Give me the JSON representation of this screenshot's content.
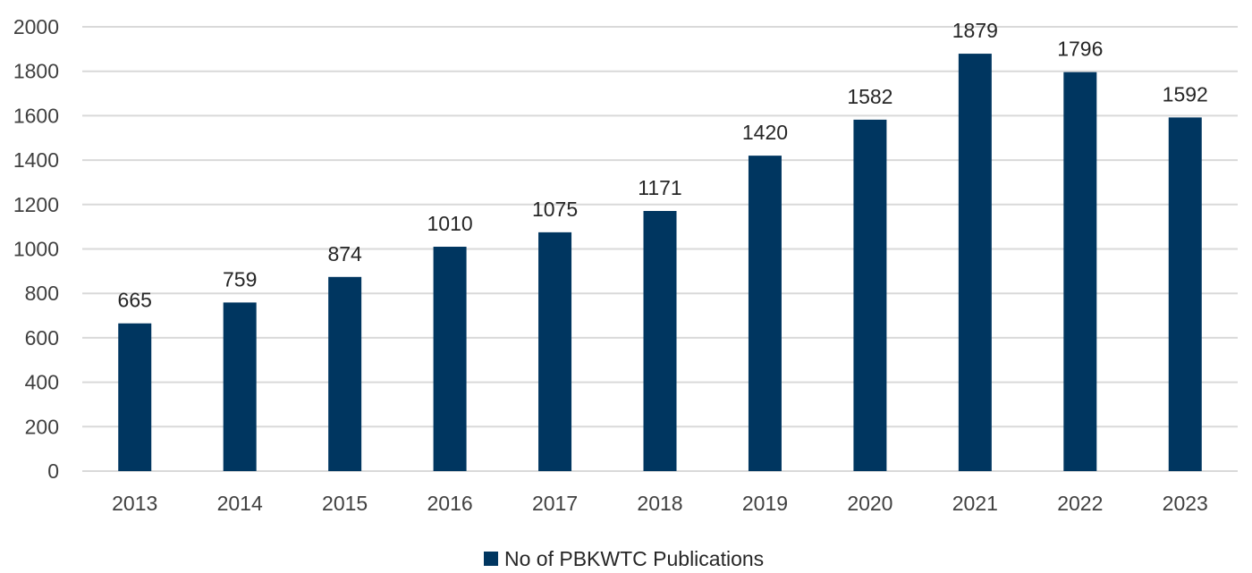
{
  "colors": {
    "bar": "#003660",
    "grid": "#d9d9d9",
    "text": "#404040"
  },
  "chart_data": {
    "type": "bar",
    "title": "",
    "xlabel": "",
    "ylabel": "",
    "categories": [
      "2013",
      "2014",
      "2015",
      "2016",
      "2017",
      "2018",
      "2019",
      "2020",
      "2021",
      "2022",
      "2023"
    ],
    "series": [
      {
        "name": "No of PBKWTC Publications",
        "values": [
          665,
          759,
          874,
          1010,
          1075,
          1171,
          1420,
          1582,
          1879,
          1796,
          1592
        ]
      }
    ],
    "ylim": [
      0,
      2000
    ],
    "yticks": [
      "0",
      "200",
      "400",
      "600",
      "800",
      "1000",
      "1200",
      "1400",
      "1600",
      "1800",
      "2000"
    ],
    "grid": true,
    "legend_position": "bottom-center",
    "data_labels": true
  }
}
